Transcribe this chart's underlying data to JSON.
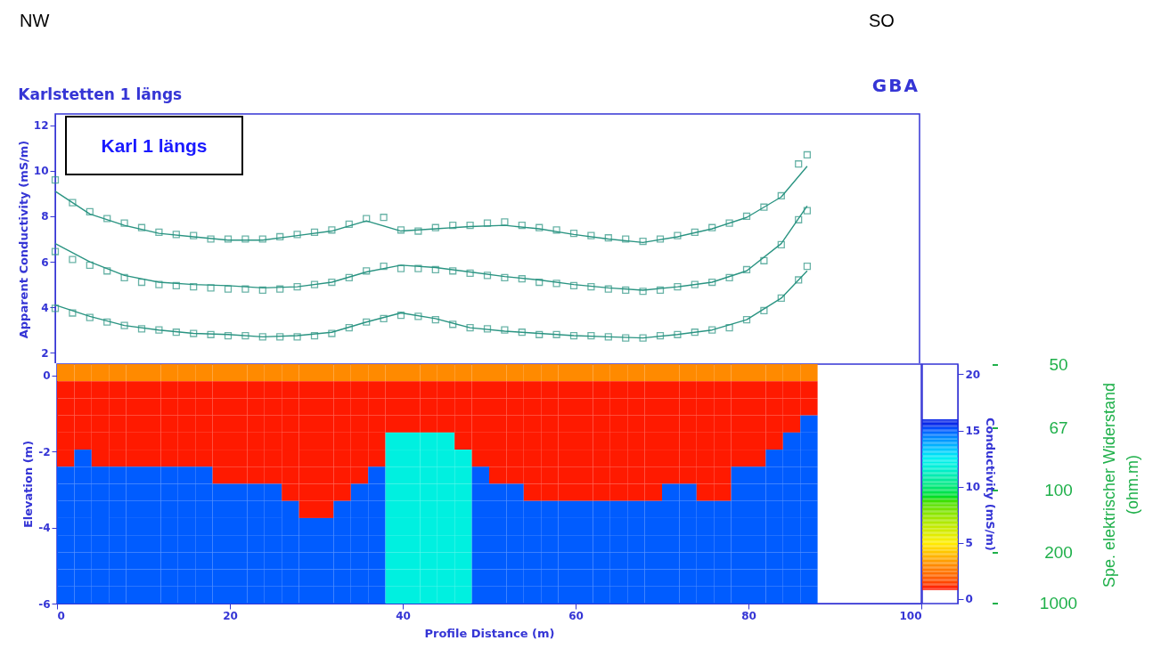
{
  "chart_data": [
    {
      "type": "line",
      "title": "Karlstetten 1 längs",
      "ylabel": "Apparent Conductivity (mS/m)",
      "annotations": [
        "NW",
        "SO",
        "GBA",
        "Karl 1 längs"
      ],
      "xlim": [
        0,
        100
      ],
      "ylim": [
        1.5,
        12.5
      ],
      "yticks": [
        2,
        4,
        6,
        8,
        10,
        12
      ],
      "tick_labels": "y",
      "series": [
        {
          "type": "scatter",
          "marker": "square",
          "color": "#2a9482",
          "x": [
            0,
            2,
            4,
            6,
            8,
            10,
            12,
            14,
            16,
            18,
            20,
            22,
            24,
            26,
            28,
            30,
            32,
            34,
            36,
            38,
            40,
            42,
            44,
            46,
            48,
            50,
            52,
            54,
            56,
            58,
            60,
            62,
            64,
            66,
            68,
            70,
            72,
            74,
            76,
            78,
            80,
            82,
            84,
            86,
            87
          ],
          "values": [
            9.6,
            8.6,
            8.2,
            7.9,
            7.7,
            7.5,
            7.3,
            7.2,
            7.15,
            7.0,
            7.0,
            7.0,
            7.0,
            7.1,
            7.2,
            7.3,
            7.4,
            7.65,
            7.9,
            7.95,
            7.4,
            7.35,
            7.5,
            7.6,
            7.6,
            7.7,
            7.75,
            7.6,
            7.5,
            7.4,
            7.25,
            7.15,
            7.05,
            7.0,
            6.9,
            7.0,
            7.15,
            7.3,
            7.5,
            7.7,
            8.0,
            8.4,
            8.9,
            10.3,
            10.7
          ]
        },
        {
          "type": "scatter",
          "marker": "square",
          "color": "#2a9482",
          "x": [
            0,
            2,
            4,
            6,
            8,
            10,
            12,
            14,
            16,
            18,
            20,
            22,
            24,
            26,
            28,
            30,
            32,
            34,
            36,
            38,
            40,
            42,
            44,
            46,
            48,
            50,
            52,
            54,
            56,
            58,
            60,
            62,
            64,
            66,
            68,
            70,
            72,
            74,
            76,
            78,
            80,
            82,
            84,
            86,
            87
          ],
          "values": [
            6.45,
            6.1,
            5.85,
            5.6,
            5.3,
            5.1,
            5.0,
            4.95,
            4.9,
            4.85,
            4.8,
            4.8,
            4.75,
            4.8,
            4.9,
            5.0,
            5.1,
            5.3,
            5.6,
            5.8,
            5.7,
            5.7,
            5.65,
            5.6,
            5.5,
            5.4,
            5.3,
            5.25,
            5.1,
            5.05,
            4.95,
            4.9,
            4.8,
            4.75,
            4.7,
            4.75,
            4.9,
            5.0,
            5.1,
            5.3,
            5.65,
            6.05,
            6.75,
            7.85,
            8.25
          ]
        },
        {
          "type": "scatter",
          "marker": "square",
          "color": "#2a9482",
          "x": [
            0,
            2,
            4,
            6,
            8,
            10,
            12,
            14,
            16,
            18,
            20,
            22,
            24,
            26,
            28,
            30,
            32,
            34,
            36,
            38,
            40,
            42,
            44,
            46,
            48,
            50,
            52,
            54,
            56,
            58,
            60,
            62,
            64,
            66,
            68,
            70,
            72,
            74,
            76,
            78,
            80,
            82,
            84,
            86,
            87
          ],
          "values": [
            3.95,
            3.75,
            3.55,
            3.35,
            3.2,
            3.05,
            3.0,
            2.9,
            2.85,
            2.8,
            2.75,
            2.75,
            2.7,
            2.7,
            2.7,
            2.75,
            2.85,
            3.1,
            3.35,
            3.5,
            3.65,
            3.6,
            3.45,
            3.25,
            3.1,
            3.05,
            3.0,
            2.9,
            2.8,
            2.8,
            2.75,
            2.75,
            2.7,
            2.65,
            2.65,
            2.75,
            2.8,
            2.9,
            3.0,
            3.1,
            3.45,
            3.85,
            4.4,
            5.2,
            5.8
          ]
        },
        {
          "type": "line",
          "color": "#2a9482",
          "x": [
            0,
            4,
            8,
            12,
            16,
            20,
            24,
            28,
            32,
            36,
            40,
            44,
            48,
            52,
            56,
            60,
            64,
            68,
            72,
            76,
            80,
            84,
            87
          ],
          "values": [
            9.1,
            8.1,
            7.6,
            7.25,
            7.1,
            6.95,
            6.95,
            7.15,
            7.35,
            7.8,
            7.35,
            7.45,
            7.55,
            7.6,
            7.45,
            7.2,
            7.0,
            6.85,
            7.1,
            7.45,
            7.95,
            8.85,
            10.2
          ]
        },
        {
          "type": "line",
          "color": "#2a9482",
          "x": [
            0,
            4,
            8,
            12,
            16,
            20,
            24,
            28,
            32,
            36,
            40,
            44,
            48,
            52,
            56,
            60,
            64,
            68,
            72,
            76,
            80,
            84,
            87
          ],
          "values": [
            6.8,
            6.0,
            5.4,
            5.1,
            5.0,
            4.95,
            4.85,
            4.9,
            5.1,
            5.55,
            5.85,
            5.75,
            5.55,
            5.35,
            5.2,
            5.0,
            4.85,
            4.75,
            4.9,
            5.1,
            5.6,
            6.8,
            8.45
          ]
        },
        {
          "type": "line",
          "color": "#2a9482",
          "x": [
            0,
            4,
            8,
            12,
            16,
            20,
            24,
            28,
            32,
            36,
            40,
            44,
            48,
            52,
            56,
            60,
            64,
            68,
            72,
            76,
            80,
            84,
            87
          ],
          "values": [
            4.1,
            3.6,
            3.2,
            3.0,
            2.85,
            2.8,
            2.7,
            2.75,
            2.9,
            3.35,
            3.75,
            3.5,
            3.1,
            2.95,
            2.85,
            2.75,
            2.7,
            2.65,
            2.8,
            3.0,
            3.45,
            4.4,
            5.6
          ]
        }
      ]
    },
    {
      "type": "heatmap",
      "xlabel": "Profile Distance (m)",
      "ylabel": "Elevation (m)",
      "clabel": "Conductivity (mS/m)",
      "y2label": "Spe. elektrischer Widerstand (ohm.m)",
      "xlim": [
        0,
        100
      ],
      "xticks": [
        0,
        20,
        40,
        60,
        80,
        100
      ],
      "ylim": [
        -6,
        0.3
      ],
      "yticks": [
        -6,
        -4,
        -2,
        0
      ],
      "clim": [
        -0.4,
        20.9
      ],
      "cticks": [
        0,
        5,
        10,
        15,
        20
      ],
      "annotations": [
        "50",
        "67",
        "100",
        "200",
        "1000"
      ],
      "x": [
        1,
        3,
        5,
        7,
        9,
        11,
        13,
        15,
        17,
        19,
        21,
        23,
        25,
        27,
        29,
        31,
        33,
        35,
        37,
        39,
        41,
        43,
        45,
        47,
        49,
        51,
        53,
        55,
        57,
        59,
        61,
        63,
        65,
        67,
        69,
        71,
        73,
        75,
        77,
        79,
        81,
        83,
        85,
        87
      ],
      "cells": [
        [
          3,
          3,
          3,
          3,
          3,
          3,
          3,
          3,
          3,
          3,
          3,
          3,
          3,
          3,
          3,
          3,
          3,
          3,
          3,
          3,
          3,
          3,
          3,
          3,
          3,
          3,
          3,
          3,
          3,
          3,
          3,
          3,
          3,
          3,
          3,
          3,
          3,
          3,
          3,
          3,
          3,
          3,
          3,
          3
        ],
        [
          1,
          1,
          1,
          1,
          1,
          1,
          1,
          1,
          1,
          1,
          1,
          1,
          1,
          1,
          1,
          1,
          1,
          1,
          1,
          1,
          1,
          1,
          1,
          1,
          1,
          1,
          1,
          1,
          1,
          1,
          1,
          1,
          1,
          1,
          1,
          1,
          1,
          1,
          1,
          1,
          1,
          1,
          1,
          1
        ],
        [
          1,
          1,
          1,
          1,
          1,
          1,
          1,
          1,
          1,
          1,
          1,
          1,
          1,
          1,
          1,
          1,
          1,
          1,
          1,
          1,
          1,
          1,
          1,
          1,
          1,
          1,
          1,
          1,
          1,
          1,
          1,
          1,
          1,
          1,
          1,
          1,
          1,
          1,
          1,
          1,
          1,
          1,
          1,
          1
        ],
        [
          1,
          1,
          1,
          1,
          1,
          1,
          1,
          1,
          1,
          1,
          1,
          1,
          1,
          1,
          1,
          1,
          1,
          1,
          1,
          1,
          1,
          1,
          1,
          1,
          1,
          1,
          1,
          1,
          1,
          1,
          1,
          1,
          1,
          1,
          1,
          1,
          1,
          1,
          1,
          1,
          1,
          1,
          1,
          15
        ],
        [
          1,
          1,
          1,
          1,
          1,
          1,
          1,
          1,
          1,
          1,
          1,
          1,
          1,
          1,
          1,
          1,
          1,
          1,
          1,
          12,
          12,
          12,
          12,
          1,
          1,
          1,
          1,
          1,
          1,
          1,
          1,
          1,
          1,
          1,
          1,
          1,
          1,
          1,
          1,
          1,
          1,
          1,
          15,
          15
        ],
        [
          1,
          15,
          1,
          1,
          1,
          1,
          1,
          1,
          1,
          1,
          1,
          1,
          1,
          1,
          1,
          1,
          1,
          1,
          1,
          12,
          12,
          12,
          12,
          12,
          1,
          1,
          1,
          1,
          1,
          1,
          1,
          1,
          1,
          1,
          1,
          1,
          1,
          1,
          1,
          1,
          1,
          15,
          15,
          15
        ],
        [
          15,
          15,
          15,
          15,
          15,
          15,
          15,
          15,
          15,
          1,
          1,
          1,
          1,
          1,
          1,
          1,
          1,
          1,
          15,
          12,
          12,
          12,
          12,
          12,
          15,
          1,
          1,
          1,
          1,
          1,
          1,
          1,
          1,
          1,
          1,
          1,
          1,
          1,
          1,
          15,
          15,
          15,
          15,
          15
        ],
        [
          15,
          15,
          15,
          15,
          15,
          15,
          15,
          15,
          15,
          15,
          15,
          15,
          15,
          1,
          1,
          1,
          1,
          15,
          15,
          12,
          12,
          12,
          12,
          12,
          15,
          15,
          15,
          1,
          1,
          1,
          1,
          1,
          1,
          1,
          1,
          15,
          15,
          1,
          1,
          15,
          15,
          15,
          15,
          15
        ],
        [
          15,
          15,
          15,
          15,
          15,
          15,
          15,
          15,
          15,
          15,
          15,
          15,
          15,
          15,
          1,
          1,
          15,
          15,
          15,
          12,
          12,
          12,
          12,
          12,
          15,
          15,
          15,
          15,
          15,
          15,
          15,
          15,
          15,
          15,
          15,
          15,
          15,
          15,
          15,
          15,
          15,
          15,
          15,
          15
        ],
        [
          15,
          15,
          15,
          15,
          15,
          15,
          15,
          15,
          15,
          15,
          15,
          15,
          15,
          15,
          15,
          15,
          15,
          15,
          15,
          12,
          12,
          12,
          12,
          12,
          15,
          15,
          15,
          15,
          15,
          15,
          15,
          15,
          15,
          15,
          15,
          15,
          15,
          15,
          15,
          15,
          15,
          15,
          15,
          15
        ],
        [
          15,
          15,
          15,
          15,
          15,
          15,
          15,
          15,
          15,
          15,
          15,
          15,
          15,
          15,
          15,
          15,
          15,
          15,
          15,
          12,
          12,
          12,
          12,
          12,
          15,
          15,
          15,
          15,
          15,
          15,
          15,
          15,
          15,
          15,
          15,
          15,
          15,
          15,
          15,
          15,
          15,
          15,
          15,
          15
        ],
        [
          15,
          15,
          15,
          15,
          15,
          15,
          15,
          15,
          15,
          15,
          15,
          15,
          15,
          15,
          15,
          15,
          15,
          15,
          15,
          12,
          12,
          12,
          12,
          12,
          15,
          15,
          15,
          15,
          15,
          15,
          15,
          15,
          15,
          15,
          15,
          15,
          15,
          15,
          15,
          15,
          15,
          15,
          15,
          15
        ],
        [
          15,
          15,
          15,
          15,
          15,
          15,
          15,
          15,
          15,
          15,
          15,
          15,
          15,
          15,
          15,
          15,
          15,
          15,
          15,
          12,
          12,
          12,
          12,
          12,
          15,
          15,
          15,
          15,
          15,
          15,
          15,
          15,
          15,
          15,
          15,
          15,
          15,
          15,
          15,
          15,
          15,
          15,
          15,
          15
        ],
        [
          15,
          15,
          15,
          15,
          15,
          15,
          15,
          15,
          15,
          15,
          15,
          15,
          15,
          15,
          15,
          15,
          15,
          15,
          15,
          12,
          12,
          12,
          12,
          12,
          15,
          15,
          15,
          15,
          15,
          15,
          15,
          15,
          15,
          15,
          15,
          15,
          15,
          15,
          15,
          15,
          15,
          15,
          15,
          15
        ]
      ]
    }
  ]
}
